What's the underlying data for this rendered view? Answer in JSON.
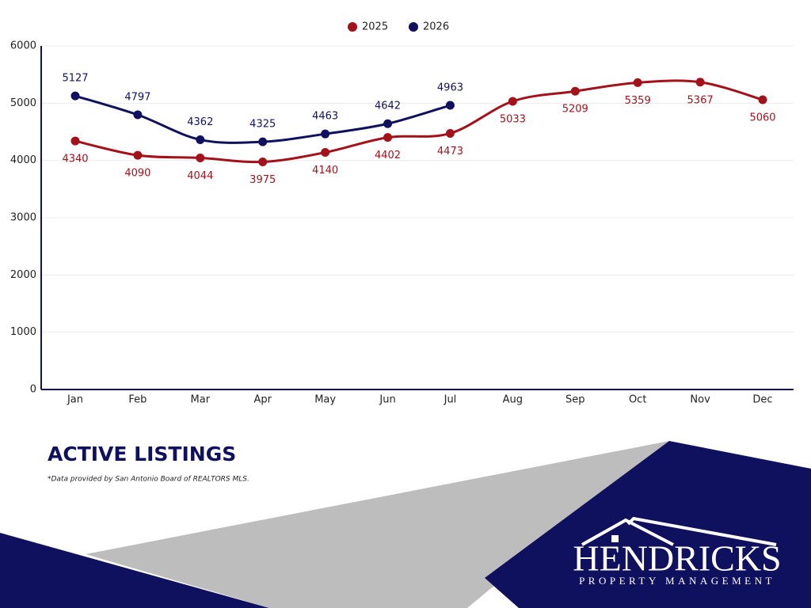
{
  "chart_data": {
    "type": "line",
    "title": "ACTIVE LISTINGS",
    "note": "*Data provided by San Antonio Board of REALTORS MLS.",
    "categories": [
      "Jan",
      "Feb",
      "Mar",
      "Apr",
      "May",
      "Jun",
      "Jul",
      "Aug",
      "Sep",
      "Oct",
      "Nov",
      "Dec"
    ],
    "series": [
      {
        "name": "2025",
        "color": "#a3121b",
        "values": [
          4340,
          4090,
          4044,
          3975,
          4140,
          4402,
          4473,
          5033,
          5209,
          5359,
          5367,
          5060
        ]
      },
      {
        "name": "2026",
        "color": "#10115e",
        "values": [
          5127,
          4797,
          4362,
          4325,
          4463,
          4642,
          4963,
          null,
          null,
          null,
          null,
          null
        ]
      }
    ],
    "ylim": [
      0,
      6000
    ],
    "yticks": [
      0,
      1000,
      2000,
      3000,
      4000,
      5000,
      6000
    ],
    "grid": true,
    "legend": "top"
  },
  "logo": {
    "name": "HENDRICKS",
    "tagline": "PROPERTY MANAGEMENT"
  }
}
